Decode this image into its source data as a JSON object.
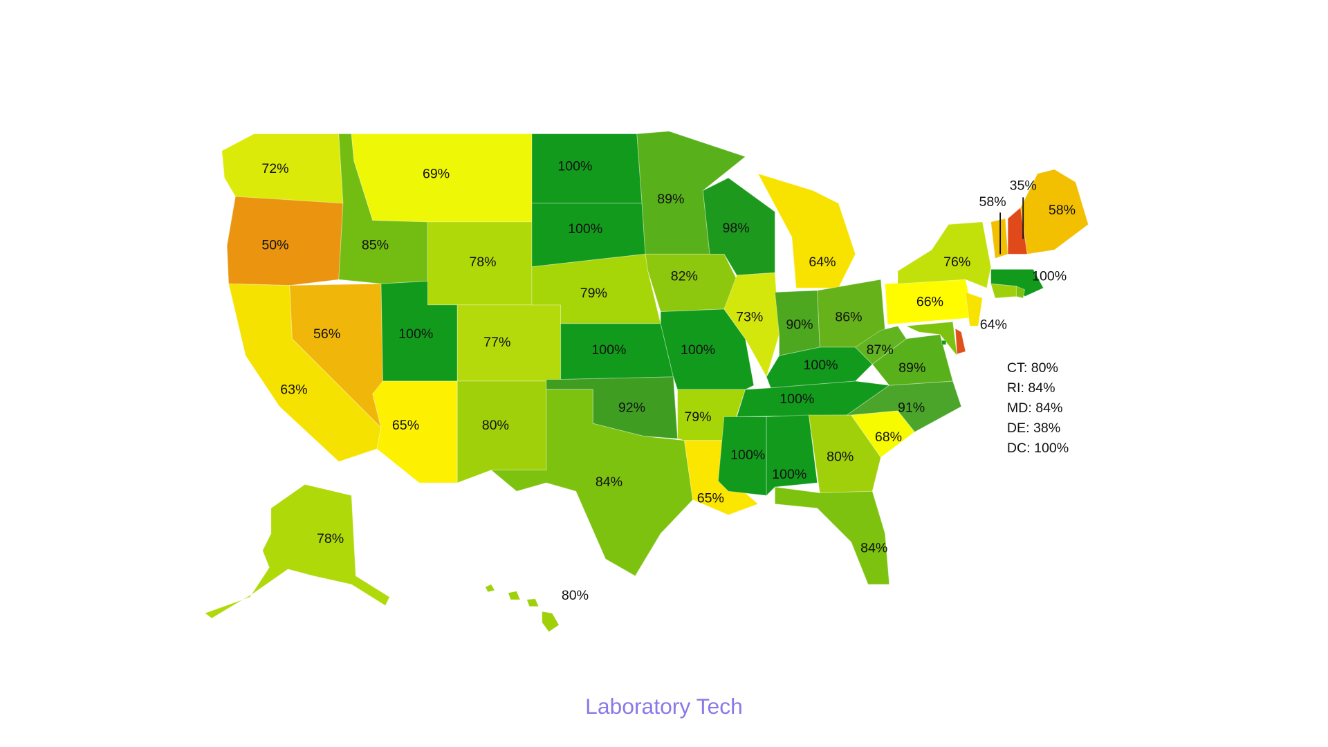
{
  "title": "Laboratory Tech",
  "states": [
    {
      "label": "72%",
      "value": 72,
      "color": "#dcea0a"
    },
    {
      "label": "50%",
      "value": 50,
      "color": "#ea9410"
    },
    {
      "label": "63%",
      "value": 63,
      "color": "#f6e200"
    },
    {
      "label": "56%",
      "value": 56,
      "color": "#f0b70a"
    },
    {
      "label": "85%",
      "value": 85,
      "color": "#73bd13"
    },
    {
      "label": "69%",
      "value": 69,
      "color": "#eef706"
    },
    {
      "label": "78%",
      "value": 78,
      "color": "#b0d90a"
    },
    {
      "label": "100%",
      "value": 100,
      "color": "#129a1c"
    },
    {
      "label": "77%",
      "value": 77,
      "color": "#b5da0b"
    },
    {
      "label": "65%",
      "value": 65,
      "color": "#fdf000"
    },
    {
      "label": "80%",
      "value": 80,
      "color": "#9fd00a"
    },
    {
      "label": "100%",
      "value": 100,
      "color": "#129a1c"
    },
    {
      "label": "100%",
      "value": 100,
      "color": "#129a1c"
    },
    {
      "label": "79%",
      "value": 79,
      "color": "#a6d508"
    },
    {
      "label": "100%",
      "value": 100,
      "color": "#129a1c"
    },
    {
      "label": "92%",
      "value": 92,
      "color": "#3f9e22"
    },
    {
      "label": "84%",
      "value": 84,
      "color": "#7cc20e"
    },
    {
      "label": "89%",
      "value": 89,
      "color": "#58b01a"
    },
    {
      "label": "82%",
      "value": 82,
      "color": "#8ec80e"
    },
    {
      "label": "100%",
      "value": 100,
      "color": "#129a1c"
    },
    {
      "label": "79%",
      "value": 79,
      "color": "#a6d508"
    },
    {
      "label": "65%",
      "value": 65,
      "color": "#fbe600"
    },
    {
      "label": "98%",
      "value": 98,
      "color": "#1d9a1e"
    },
    {
      "label": "73%",
      "value": 73,
      "color": "#d4e70c"
    },
    {
      "label": "64%",
      "value": 64,
      "color": "#f8e300"
    },
    {
      "label": "90%",
      "value": 90,
      "color": "#4da820"
    },
    {
      "label": "86%",
      "value": 86,
      "color": "#66b21a"
    },
    {
      "label": "100%",
      "value": 100,
      "color": "#129a1c"
    },
    {
      "label": "100%",
      "value": 100,
      "color": "#129a1c"
    },
    {
      "label": "100%",
      "value": 100,
      "color": "#129a1c"
    },
    {
      "label": "100%",
      "value": 100,
      "color": "#129a1c"
    },
    {
      "label": "80%",
      "value": 80,
      "color": "#9fd00a"
    },
    {
      "label": "84%",
      "value": 84,
      "color": "#7cc20e"
    },
    {
      "label": "68%",
      "value": 68,
      "color": "#f7fb00"
    },
    {
      "label": "91%",
      "value": 91,
      "color": "#4aa52a"
    },
    {
      "label": "89%",
      "value": 89,
      "color": "#58b01a"
    },
    {
      "label": "87%",
      "value": 87,
      "color": "#61b31f"
    },
    {
      "label": "66%",
      "value": 66,
      "color": "#fffc00"
    },
    {
      "label": "76%",
      "value": 76,
      "color": "#c2e00a"
    },
    {
      "label": "64%",
      "value": 64,
      "color": "#f8e300"
    },
    {
      "label": "58%",
      "value": 58,
      "color": "#f2c000"
    },
    {
      "label": "35%",
      "value": 35,
      "color": "#e04a1a"
    },
    {
      "label": "58%",
      "value": 58,
      "color": "#f2c000"
    },
    {
      "label": "100%",
      "value": 100,
      "color": "#129a1c"
    },
    {
      "label": "78%",
      "value": 78,
      "color": "#b0d90a"
    },
    {
      "label": "80%",
      "value": 80,
      "color": "#9fd00a"
    }
  ],
  "list": [
    {
      "label": "CT: 80%",
      "value": 80,
      "color": "#9fd00a"
    },
    {
      "label": "RI: 84%",
      "value": 84,
      "color": "#7cc20e"
    },
    {
      "label": "MD: 84%",
      "value": 84,
      "color": "#7cc20e"
    },
    {
      "label": "DE: 38%",
      "value": 38,
      "color": "#e0501a"
    },
    {
      "label": "DC: 100%",
      "value": 100,
      "color": "#129a1c"
    }
  ]
}
